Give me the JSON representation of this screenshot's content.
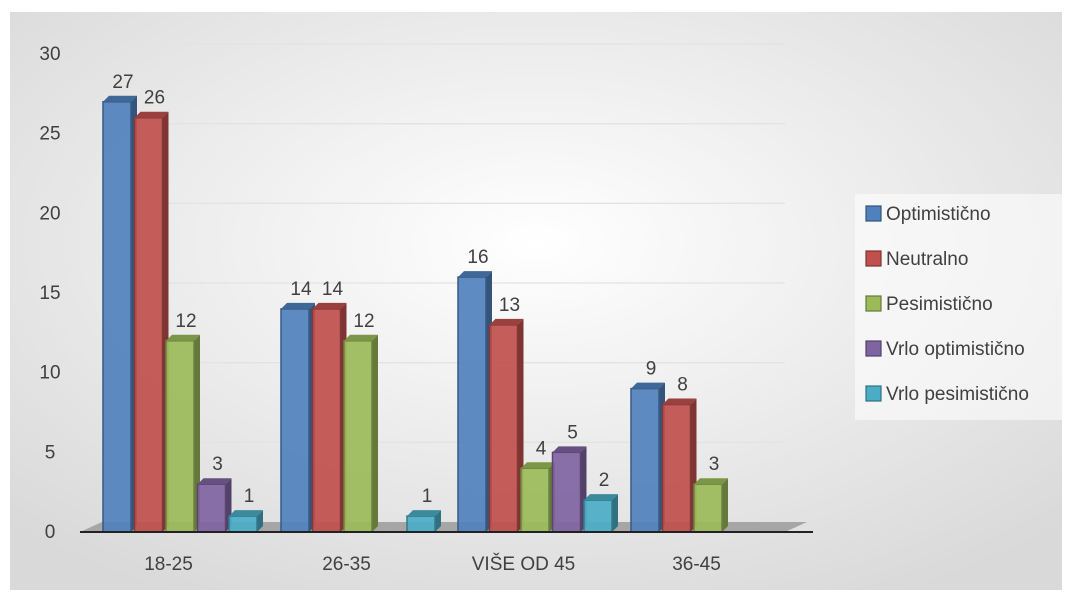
{
  "chart_data": {
    "type": "bar",
    "title": "",
    "xlabel": "",
    "ylabel": "",
    "ylim": [
      0,
      30
    ],
    "yticks": [
      0,
      5,
      10,
      15,
      20,
      25,
      30
    ],
    "grid": true,
    "legend_position": "right",
    "categories": [
      "18-25",
      "26-35",
      "VIŠE OD 45",
      "36-45"
    ],
    "series": [
      {
        "name": "Optimistično",
        "color": "#4f81bd",
        "values": [
          27,
          14,
          16,
          9
        ]
      },
      {
        "name": "Neutralno",
        "color": "#c0504d",
        "values": [
          26,
          14,
          13,
          8
        ]
      },
      {
        "name": "Pesimistično",
        "color": "#9bbb59",
        "values": [
          12,
          12,
          4,
          3
        ]
      },
      {
        "name": "Vrlo optimistično",
        "color": "#8064a2",
        "values": [
          3,
          null,
          5,
          null
        ]
      },
      {
        "name": "Vrlo pesimistično",
        "color": "#4bacc6",
        "values": [
          1,
          1,
          2,
          null
        ]
      }
    ]
  }
}
